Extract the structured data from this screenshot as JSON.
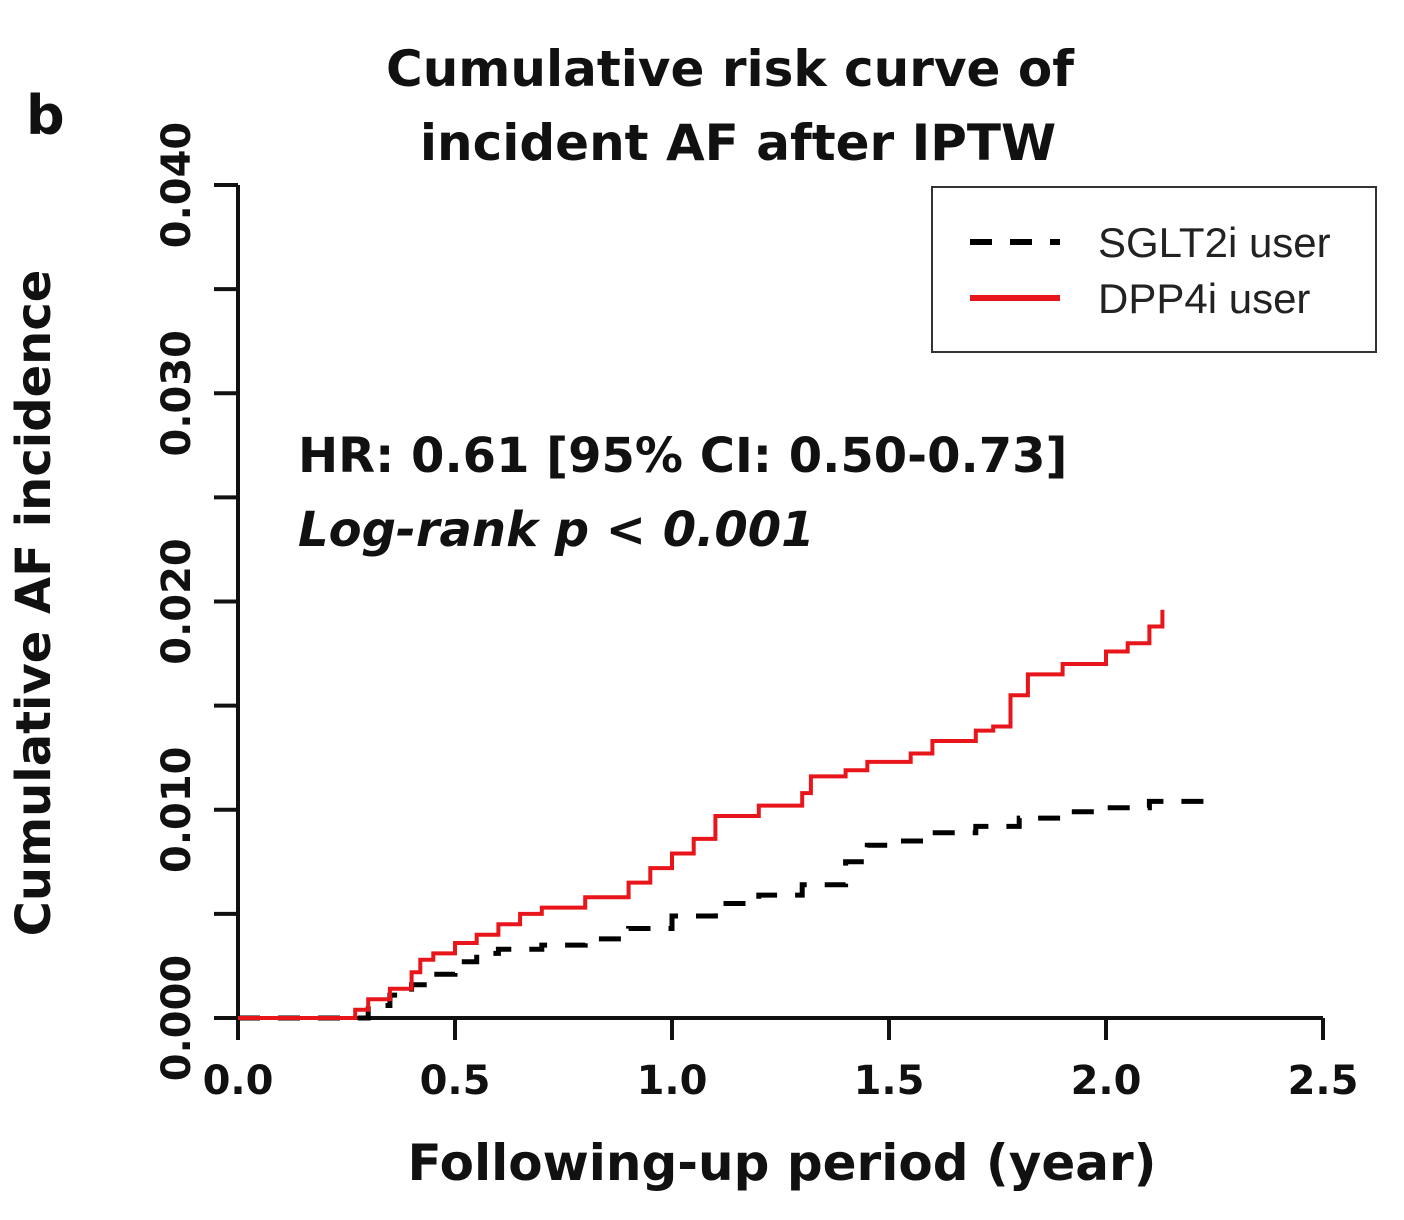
{
  "panel_label": "b",
  "chart_data": {
    "type": "line",
    "title": "Cumulative risk curve of incident AF after IPTW",
    "title_lines": [
      "Cumulative risk curve of",
      "incident AF after IPTW"
    ],
    "xlabel": "Following-up period (year)",
    "ylabel": "Cumulative AF incidence",
    "xlim": [
      0,
      2.5
    ],
    "ylim": [
      0,
      0.04
    ],
    "x_ticks": [
      "0.0",
      "0.5",
      "1.0",
      "1.5",
      "2.0",
      "2.5"
    ],
    "y_ticks": [
      "0.000",
      "0.010",
      "0.020",
      "0.030",
      "0.040"
    ],
    "legend_position": "top-right",
    "annotations": {
      "hr": "HR: 0.61 [95% CI: 0.50-0.73]",
      "logrank": "Log-rank p < 0.001"
    },
    "series": [
      {
        "name": "SGLT2i user",
        "color": "#000000",
        "style": "dashed",
        "points": [
          [
            0.0,
            0.0
          ],
          [
            0.26,
            0.0
          ],
          [
            0.3,
            0.0006
          ],
          [
            0.35,
            0.0011
          ],
          [
            0.4,
            0.0016
          ],
          [
            0.45,
            0.0021
          ],
          [
            0.5,
            0.0027
          ],
          [
            0.55,
            0.0031
          ],
          [
            0.6,
            0.0033
          ],
          [
            0.7,
            0.0035
          ],
          [
            0.8,
            0.0038
          ],
          [
            0.9,
            0.0043
          ],
          [
            1.0,
            0.0049
          ],
          [
            1.1,
            0.0055
          ],
          [
            1.2,
            0.0059
          ],
          [
            1.3,
            0.0064
          ],
          [
            1.37,
            0.0064
          ],
          [
            1.4,
            0.0075
          ],
          [
            1.45,
            0.0083
          ],
          [
            1.5,
            0.0085
          ],
          [
            1.6,
            0.0089
          ],
          [
            1.7,
            0.0092
          ],
          [
            1.8,
            0.0096
          ],
          [
            1.9,
            0.0099
          ],
          [
            2.0,
            0.0101
          ],
          [
            2.1,
            0.0104
          ],
          [
            2.23,
            0.0107
          ]
        ]
      },
      {
        "name": "DPP4i user",
        "color": "#e8161b",
        "style": "solid",
        "points": [
          [
            0.0,
            0.0
          ],
          [
            0.25,
            0.0
          ],
          [
            0.27,
            0.0004
          ],
          [
            0.3,
            0.0009
          ],
          [
            0.35,
            0.0014
          ],
          [
            0.4,
            0.0022
          ],
          [
            0.42,
            0.0028
          ],
          [
            0.45,
            0.0031
          ],
          [
            0.5,
            0.0036
          ],
          [
            0.55,
            0.004
          ],
          [
            0.6,
            0.0045
          ],
          [
            0.65,
            0.005
          ],
          [
            0.7,
            0.0053
          ],
          [
            0.8,
            0.0058
          ],
          [
            0.9,
            0.0065
          ],
          [
            0.95,
            0.0072
          ],
          [
            1.0,
            0.0079
          ],
          [
            1.05,
            0.0086
          ],
          [
            1.1,
            0.0097
          ],
          [
            1.2,
            0.0102
          ],
          [
            1.3,
            0.0108
          ],
          [
            1.32,
            0.0116
          ],
          [
            1.4,
            0.0119
          ],
          [
            1.45,
            0.0123
          ],
          [
            1.55,
            0.0127
          ],
          [
            1.6,
            0.0133
          ],
          [
            1.7,
            0.0138
          ],
          [
            1.74,
            0.014
          ],
          [
            1.78,
            0.0155
          ],
          [
            1.82,
            0.0165
          ],
          [
            1.9,
            0.017
          ],
          [
            2.0,
            0.0176
          ],
          [
            2.05,
            0.018
          ],
          [
            2.1,
            0.0188
          ],
          [
            2.13,
            0.0196
          ]
        ]
      }
    ]
  }
}
